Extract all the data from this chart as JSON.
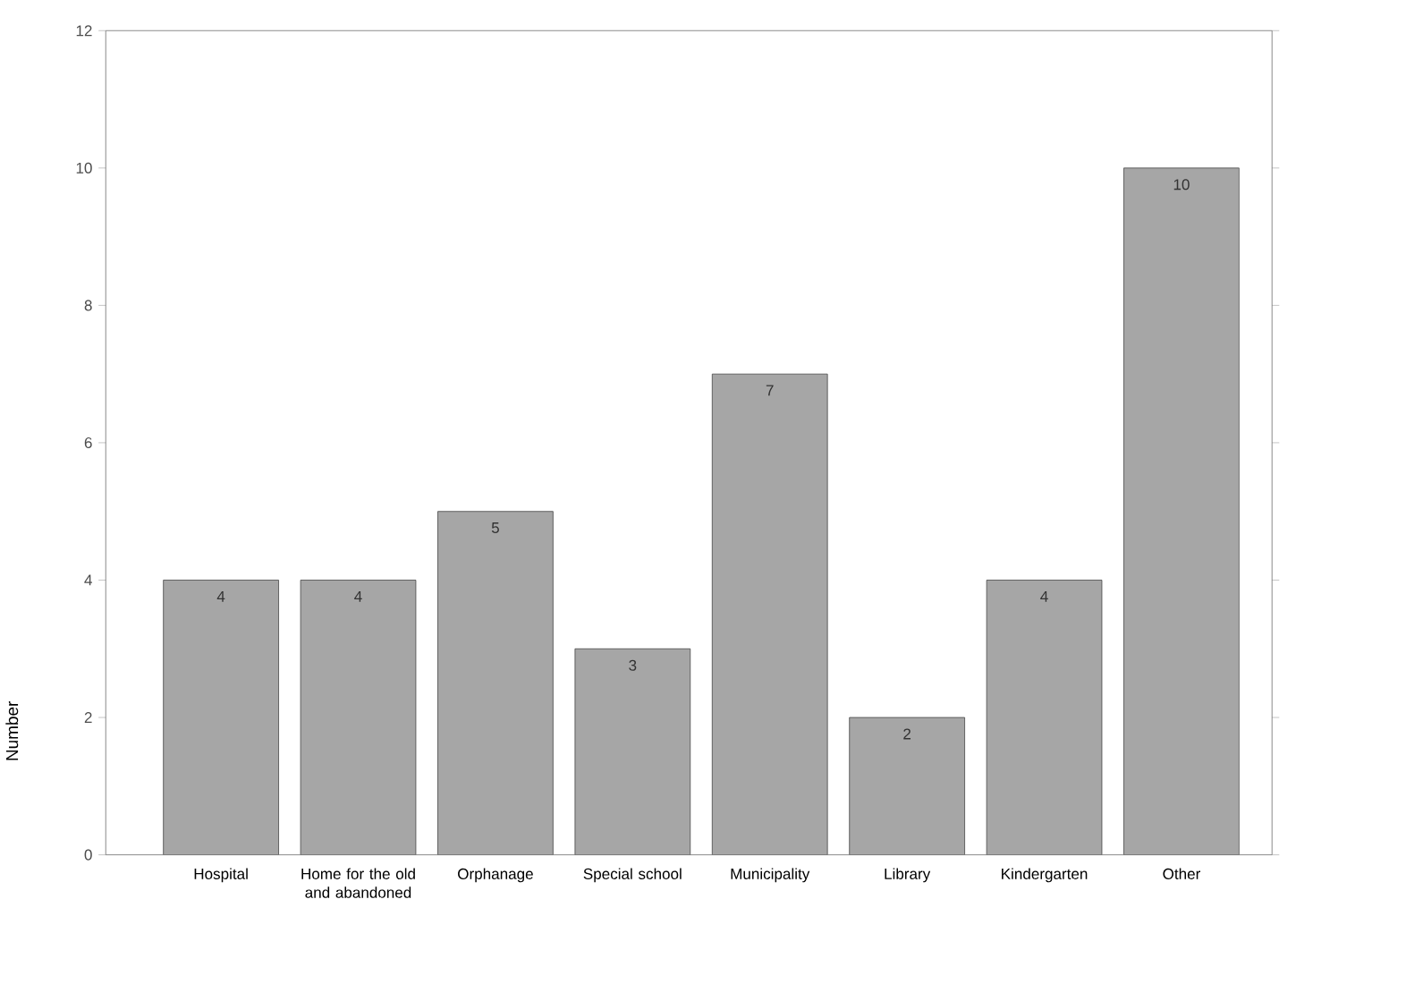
{
  "chart_data": {
    "type": "bar",
    "ylabel": "Number",
    "categories": [
      "Hospital",
      "Home for the old and abandoned",
      "Orphanage",
      "Special school",
      "Municipality",
      "Library",
      "Kindergarten",
      "Other"
    ],
    "values": [
      4,
      4,
      5,
      3,
      7,
      2,
      4,
      10
    ],
    "color": "#a6a6a6",
    "ylim": [
      0,
      12
    ],
    "yticks": [
      0,
      2,
      4,
      6,
      8,
      10,
      12
    ],
    "data_labels": true
  }
}
